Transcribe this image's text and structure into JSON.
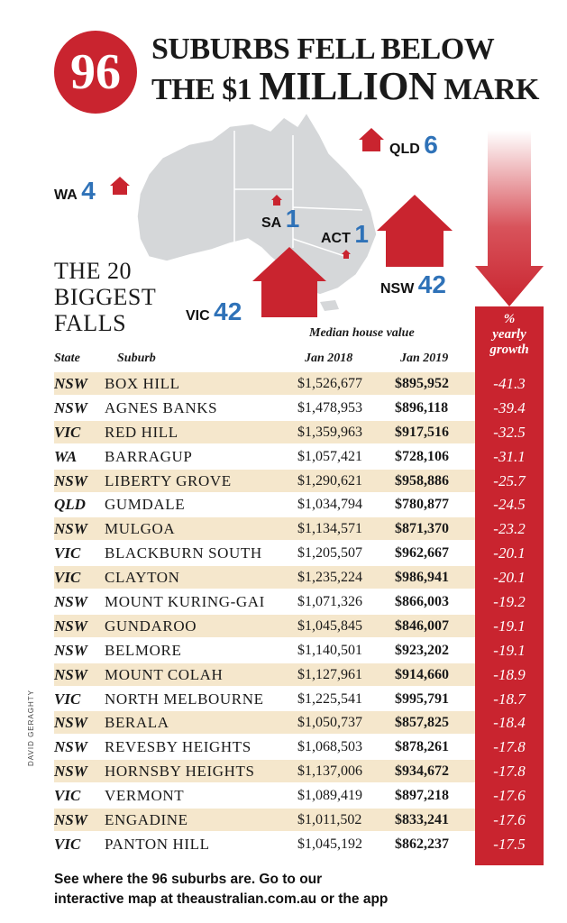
{
  "header": {
    "badge": "96",
    "line1": "SUBURBS FELL BELOW",
    "line2_pre": "THE $1 ",
    "line2_big": "MILLION",
    "line2_post": " MARK"
  },
  "map": {
    "labels": [
      {
        "state": "WA",
        "count": "4"
      },
      {
        "state": "QLD",
        "count": "6"
      },
      {
        "state": "SA",
        "count": "1"
      },
      {
        "state": "ACT",
        "count": "1"
      },
      {
        "state": "NSW",
        "count": "42"
      },
      {
        "state": "VIC",
        "count": "42"
      }
    ],
    "colors": {
      "land": "#d5d7d9",
      "house": "#c9242f",
      "number": "#2f72b8"
    }
  },
  "subtitle": [
    "THE 20",
    "BIGGEST",
    "FALLS"
  ],
  "column_headers": {
    "group": "Median house value",
    "state": "State",
    "suburb": "Suburb",
    "jan2018": "Jan 2018",
    "jan2019": "Jan 2019",
    "growth_1": "%",
    "growth_2": "yearly",
    "growth_3": "growth"
  },
  "credit": "DAVID GERAGHTY",
  "footer": {
    "line1": "See where the 96 suburbs are. Go to our",
    "line2": "interactive map at theaustralian.com.au or the app"
  },
  "chart_data": {
    "type": "table",
    "columns": [
      "State",
      "Suburb",
      "Jan 2018",
      "Jan 2019",
      "% yearly growth"
    ],
    "rows": [
      [
        "NSW",
        "BOX HILL",
        "$1,526,677",
        "$895,952",
        "-41.3"
      ],
      [
        "NSW",
        "AGNES BANKS",
        "$1,478,953",
        "$896,118",
        "-39.4"
      ],
      [
        "VIC",
        "RED HILL",
        "$1,359,963",
        "$917,516",
        "-32.5"
      ],
      [
        "WA",
        "BARRAGUP",
        "$1,057,421",
        "$728,106",
        "-31.1"
      ],
      [
        "NSW",
        "LIBERTY GROVE",
        "$1,290,621",
        "$958,886",
        "-25.7"
      ],
      [
        "QLD",
        "GUMDALE",
        "$1,034,794",
        "$780,877",
        "-24.5"
      ],
      [
        "NSW",
        "MULGOA",
        "$1,134,571",
        "$871,370",
        "-23.2"
      ],
      [
        "VIC",
        "BLACKBURN SOUTH",
        "$1,205,507",
        "$962,667",
        "-20.1"
      ],
      [
        "VIC",
        "CLAYTON",
        "$1,235,224",
        "$986,941",
        "-20.1"
      ],
      [
        "NSW",
        "MOUNT KURING-GAI",
        "$1,071,326",
        "$866,003",
        "-19.2"
      ],
      [
        "NSW",
        "GUNDAROO",
        "$1,045,845",
        "$846,007",
        "-19.1"
      ],
      [
        "NSW",
        "BELMORE",
        "$1,140,501",
        "$923,202",
        "-19.1"
      ],
      [
        "NSW",
        "MOUNT COLAH",
        "$1,127,961",
        "$914,660",
        "-18.9"
      ],
      [
        "VIC",
        "NORTH MELBOURNE",
        "$1,225,541",
        "$995,791",
        "-18.7"
      ],
      [
        "NSW",
        "BERALA",
        "$1,050,737",
        "$857,825",
        "-18.4"
      ],
      [
        "NSW",
        "REVESBY HEIGHTS",
        "$1,068,503",
        "$878,261",
        "-17.8"
      ],
      [
        "NSW",
        "HORNSBY HEIGHTS",
        "$1,137,006",
        "$934,672",
        "-17.8"
      ],
      [
        "VIC",
        "VERMONT",
        "$1,089,419",
        "$897,218",
        "-17.6"
      ],
      [
        "NSW",
        "ENGADINE",
        "$1,011,502",
        "$833,241",
        "-17.6"
      ],
      [
        "VIC",
        "PANTON HILL",
        "$1,045,192",
        "$862,237",
        "-17.5"
      ]
    ]
  }
}
